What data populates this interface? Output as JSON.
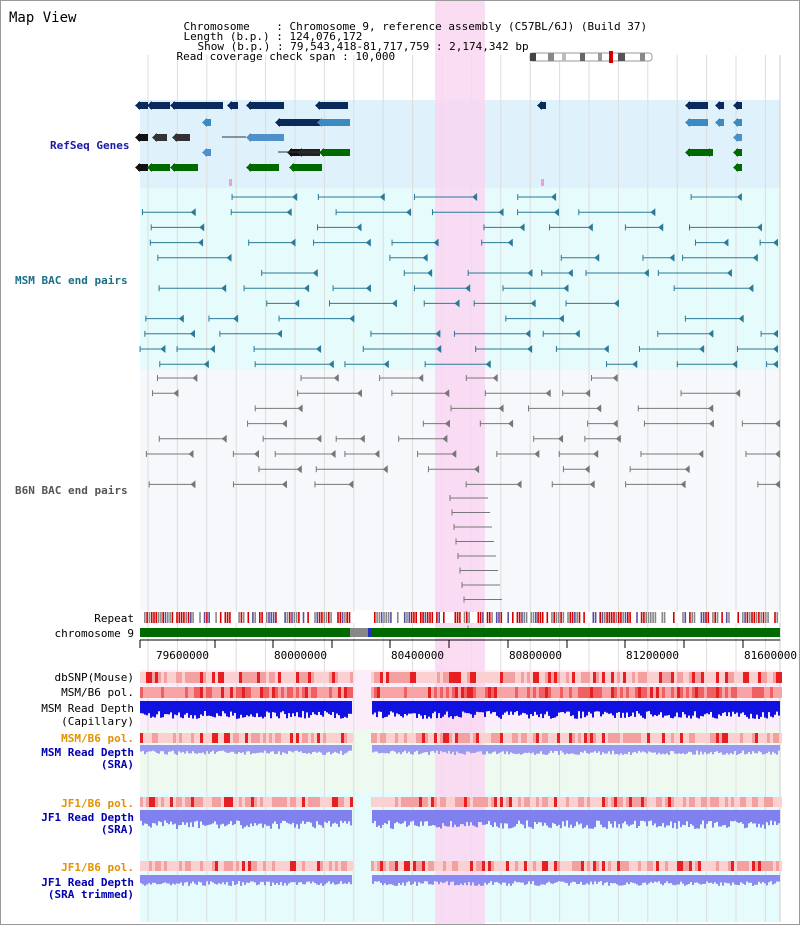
{
  "title": "Map View",
  "info": {
    "chromosome_label": "Chromosome",
    "chromosome_value": "Chromosome 9, reference assembly (C57BL/6J) (Build 37)",
    "length_label": "Length (b.p.)",
    "length_value": "124,076,172",
    "show_label": "Show (b.p.)",
    "show_value": "79,543,418-81,717,759 : 2,174,342 bp",
    "coverage_label": "Read coverage check span",
    "coverage_value": "10,000"
  },
  "tracks": {
    "refseq": "RefSeq Genes",
    "msm_bac": "MSM BAC end pairs",
    "b6n_bac": "B6N BAC end pairs",
    "repeat": "Repeat",
    "chromosome": "chromosome 9",
    "dbsnp": "dbSNP(Mouse)",
    "msm_b6_pol": "MSM/B6 pol.",
    "msm_depth_cap_1": "MSM Read Depth",
    "msm_depth_cap_2": "(Capillary)",
    "msm_b6_pol_2": "MSM/B6 pol.",
    "msm_depth_sra_1": "MSM Read Depth",
    "msm_depth_sra_2": "(SRA)",
    "jf1_pol_1": "JF1/B6 pol.",
    "jf1_depth_sra_1": "JF1 Read Depth",
    "jf1_depth_sra_2": "(SRA)",
    "jf1_pol_2": "JF1/B6 pol.",
    "jf1_depth_trim_1": "JF1 Read Depth",
    "jf1_depth_trim_2": "(SRA trimmed)"
  },
  "axis_ticks": [
    "79600000",
    "80000000",
    "80400000",
    "80800000",
    "81200000",
    "81600000"
  ],
  "colors": {
    "refseq_label": "#1a1aa6",
    "msm_label": "#1a6f86",
    "b6n_label": "#555555",
    "orange_label": "#e39200",
    "blue_label": "#0000b0",
    "highlight": "#f9d6f1",
    "chromosome_green": "#006a00"
  }
}
